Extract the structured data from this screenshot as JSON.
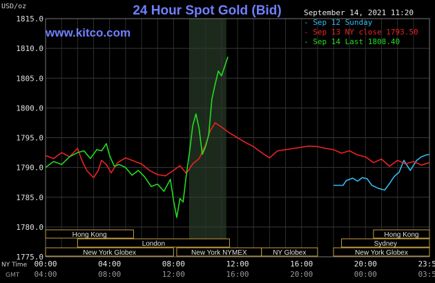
{
  "header": {
    "title": "24 Hour Spot Gold (Bid)",
    "site": "www.kitco.com",
    "unit": "USD/oz",
    "datetime": "September 14, 2021 11:20"
  },
  "legend": [
    {
      "text": "- Sep 12 Sunday",
      "color": "#33bbee"
    },
    {
      "text": "- Sep 13 NY close 1793.50",
      "color": "#ee2222"
    },
    {
      "text": "- Sep 14 Last 1808.40",
      "color": "#22dd22"
    }
  ],
  "footer": {
    "row1_label": "NY Time",
    "row2_label": "GMT"
  },
  "sessions": [
    {
      "name": "Hong Kong",
      "row": 0,
      "start": 0,
      "end": 5.5
    },
    {
      "name": "Hong Kong",
      "row": 0,
      "start": 20.5,
      "end": 24
    },
    {
      "name": "London",
      "row": 1,
      "start": 2,
      "end": 11.5
    },
    {
      "name": "Sydney",
      "row": 1,
      "start": 18.5,
      "end": 24
    },
    {
      "name": "New York Globex",
      "row": 2,
      "start": 0,
      "end": 8
    },
    {
      "name": "New York NYMEX",
      "row": 2,
      "start": 8.2,
      "end": 13.5
    },
    {
      "name": "NY Globex",
      "row": 2,
      "start": 13.5,
      "end": 17
    },
    {
      "name": "New York Globex",
      "row": 2,
      "start": 18,
      "end": 24
    }
  ],
  "chart_data": {
    "type": "line",
    "title": "24 Hour Spot Gold (Bid)",
    "ylabel": "USD/oz",
    "ylim": [
      1775,
      1815
    ],
    "xlim": [
      0,
      24
    ],
    "yticks": [
      1775,
      1780,
      1785,
      1790,
      1795,
      1800,
      1805,
      1810,
      1815
    ],
    "ytick_labels": [
      "1775.0",
      "1780.0",
      "1785.0",
      "1790.0",
      "1795.0",
      "1800.0",
      "1805.0",
      "1810.0",
      "1815.0"
    ],
    "xticks": [
      0,
      4,
      8,
      12,
      16,
      20,
      24
    ],
    "xtick_labels": [
      "00:00",
      "04:00",
      "08:00",
      "12:00",
      "16:00",
      "20:00",
      "23:59"
    ],
    "xtick_labels_gmt": [
      "04:00",
      "08:00",
      "12:00",
      "16:00",
      "20:00",
      "00:00",
      "03:59"
    ],
    "highlight": {
      "start": 9.0,
      "end": 11.3,
      "color": "#1c2a1c"
    },
    "grid": true,
    "series": [
      {
        "name": "Sep 12 Sunday",
        "color": "#33bbee",
        "x": [
          18.0,
          18.6,
          18.8,
          19.2,
          19.5,
          19.8,
          20.1,
          20.4,
          20.8,
          21.2,
          21.5,
          21.8,
          22.1,
          22.4,
          22.8,
          23.2,
          23.5,
          23.8,
          23.98
        ],
        "y": [
          1787.0,
          1787.0,
          1787.8,
          1788.2,
          1787.7,
          1788.3,
          1788.1,
          1787.0,
          1786.5,
          1786.2,
          1787.3,
          1788.5,
          1789.2,
          1791.2,
          1789.5,
          1791.2,
          1791.8,
          1792.1,
          1792.2
        ]
      },
      {
        "name": "Sep 13 NY close 1793.50",
        "color": "#ee2222",
        "x": [
          0,
          0.5,
          1.0,
          1.5,
          2.0,
          2.3,
          2.6,
          3.0,
          3.3,
          3.5,
          3.8,
          4.1,
          4.5,
          5.0,
          5.5,
          6.0,
          6.5,
          7.0,
          7.5,
          8.0,
          8.4,
          8.8,
          9.2,
          9.6,
          10.0,
          10.3,
          10.6,
          11.0,
          11.5,
          12.0,
          12.5,
          13.0,
          13.5,
          14.0,
          14.5,
          15.0,
          15.5,
          16.0,
          16.5,
          17.0,
          17.5,
          18.0,
          18.5,
          19.0,
          19.5,
          20.0,
          20.5,
          21.0,
          21.5,
          22.0,
          22.5,
          23.0,
          23.5,
          23.98
        ],
        "y": [
          1792.0,
          1791.5,
          1792.5,
          1791.8,
          1793.2,
          1791.0,
          1789.4,
          1788.3,
          1789.5,
          1791.2,
          1790.5,
          1789.1,
          1790.8,
          1791.6,
          1791.1,
          1790.6,
          1789.5,
          1788.8,
          1788.6,
          1789.5,
          1790.3,
          1789.0,
          1790.6,
          1791.5,
          1793.8,
          1796.2,
          1797.5,
          1796.8,
          1795.8,
          1795.0,
          1794.2,
          1793.5,
          1792.5,
          1791.6,
          1792.8,
          1793.0,
          1793.2,
          1793.4,
          1793.6,
          1793.5,
          1793.2,
          1793.0,
          1792.4,
          1792.8,
          1792.1,
          1791.8,
          1790.8,
          1791.4,
          1790.2,
          1791.2,
          1790.6,
          1791.0,
          1790.4,
          1790.8
        ]
      },
      {
        "name": "Sep 14 Last 1808.40",
        "color": "#22dd22",
        "x": [
          0,
          0.5,
          1.0,
          1.5,
          2.0,
          2.4,
          2.8,
          3.2,
          3.5,
          3.8,
          4.0,
          4.3,
          4.6,
          5.0,
          5.4,
          5.8,
          6.2,
          6.6,
          7.0,
          7.4,
          7.8,
          8.0,
          8.2,
          8.4,
          8.6,
          8.8,
          9.0,
          9.2,
          9.4,
          9.6,
          9.8,
          10.0,
          10.2,
          10.4,
          10.6,
          10.8,
          11.0,
          11.2,
          11.4
        ],
        "y": [
          1790.0,
          1791.0,
          1790.5,
          1791.8,
          1792.5,
          1792.8,
          1791.5,
          1793.0,
          1792.8,
          1794.0,
          1792.0,
          1790.2,
          1790.5,
          1790.0,
          1788.7,
          1789.5,
          1788.4,
          1786.8,
          1787.2,
          1786.0,
          1788.0,
          1784.5,
          1781.6,
          1784.8,
          1784.2,
          1788.8,
          1792.6,
          1797.0,
          1799.0,
          1796.5,
          1792.2,
          1793.5,
          1795.5,
          1801.5,
          1804.0,
          1806.2,
          1805.4,
          1807.0,
          1808.6
        ]
      }
    ]
  }
}
